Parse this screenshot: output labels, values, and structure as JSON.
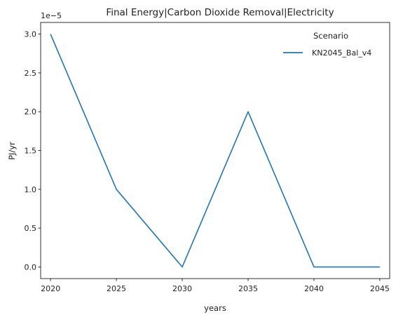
{
  "chart_data": {
    "type": "line",
    "title": "Final Energy|Carbon Dioxide Removal|Electricity",
    "xlabel": "years",
    "ylabel": "PJ/yr",
    "y_offset_label": "1e−5",
    "x": [
      2020,
      2025,
      2030,
      2035,
      2040,
      2045
    ],
    "xticks": [
      "2020",
      "2025",
      "2030",
      "2035",
      "2040",
      "2045"
    ],
    "xlim": [
      2019.25,
      2045.75
    ],
    "yticks": [
      0.0,
      0.5,
      1.0,
      1.5,
      2.0,
      2.5,
      3.0
    ],
    "ytick_labels": [
      "0.0",
      "0.5",
      "1.0",
      "1.5",
      "2.0",
      "2.5",
      "3.0"
    ],
    "ylim": [
      -0.15,
      3.15
    ],
    "y_scale_exponent": -5,
    "grid": false,
    "legend": {
      "title": "Scenario",
      "placement": "top-right"
    },
    "series": [
      {
        "name": "KN2045_Bal_v4",
        "color": "#1f77b4",
        "values": [
          3.0,
          1.0,
          0.0,
          2.0,
          0.0,
          0.0
        ]
      }
    ]
  }
}
